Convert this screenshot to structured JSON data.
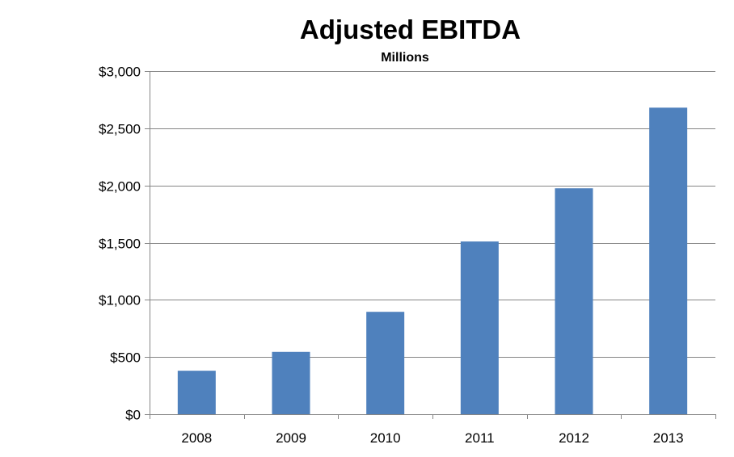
{
  "chart_data": {
    "type": "bar",
    "title": "Adjusted EBITDA",
    "subtitle": "Millions",
    "categories": [
      "2008",
      "2009",
      "2010",
      "2011",
      "2012",
      "2013"
    ],
    "values": [
      380,
      545,
      895,
      1510,
      1975,
      2680
    ],
    "ylim": [
      0,
      3000
    ],
    "yticks": [
      0,
      500,
      1000,
      1500,
      2000,
      2500,
      3000
    ],
    "ytick_labels": [
      "$0",
      "$500",
      "$1,000",
      "$1,500",
      "$2,000",
      "$2,500",
      "$3,000"
    ],
    "xlabel": "",
    "ylabel": "",
    "grid": true,
    "legend": false,
    "bar_color": "#4f81bd",
    "grid_color": "#868686"
  }
}
